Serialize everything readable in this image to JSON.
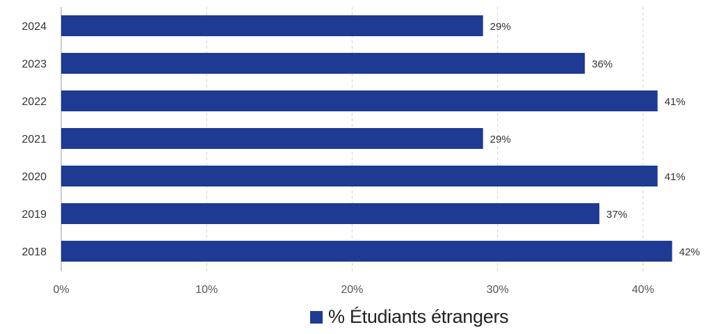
{
  "chart_data": {
    "type": "bar",
    "orientation": "horizontal",
    "categories": [
      "2024",
      "2023",
      "2022",
      "2021",
      "2020",
      "2019",
      "2018"
    ],
    "series": [
      {
        "name": "% Étudiants étrangers",
        "values": [
          29,
          36,
          41,
          29,
          41,
          37,
          42
        ],
        "labels": [
          "29%",
          "36%",
          "41%",
          "29%",
          "41%",
          "37%",
          "42%"
        ],
        "color": "#1f3a93"
      }
    ],
    "x_ticks": [
      "0%",
      "10%",
      "20%",
      "30%",
      "40%"
    ],
    "x_tick_values": [
      0,
      10,
      20,
      30,
      40
    ],
    "xlim": [
      0,
      44
    ],
    "grid": "vertical dashed",
    "legend_position": "bottom"
  }
}
